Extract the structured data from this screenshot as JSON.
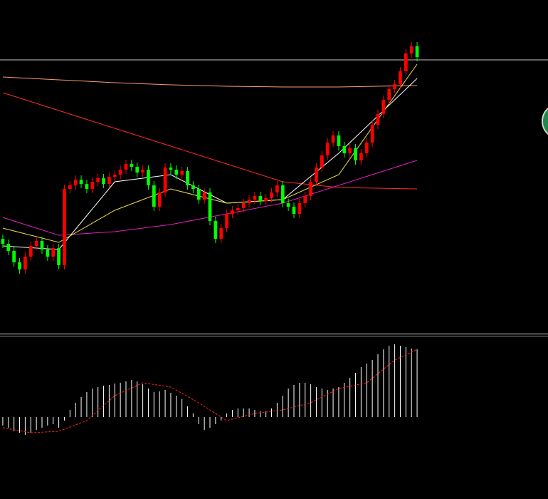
{
  "chart_data": [
    {
      "type": "candlestick",
      "xlim": [
        -0.5,
        74.5
      ],
      "ylim": [
        0,
        470
      ],
      "up_color": "#ff0000",
      "down_color": "#00ff00",
      "open": [
        135,
        128,
        118,
        102,
        92,
        110,
        125,
        132,
        120,
        110,
        122,
        98,
        205,
        210,
        218,
        212,
        205,
        215,
        220,
        212,
        222,
        225,
        232,
        240,
        236,
        228,
        232,
        210,
        180,
        200,
        235,
        232,
        225,
        230,
        210,
        205,
        190,
        200,
        160,
        135,
        150,
        170,
        175,
        178,
        185,
        190,
        195,
        188,
        192,
        200,
        210,
        185,
        180,
        170,
        185,
        195,
        215,
        235,
        252,
        270,
        280,
        265,
        255,
        262,
        245,
        255,
        270,
        295,
        310,
        330,
        345,
        352,
        370,
        395,
        405
      ],
      "high": [
        141,
        134,
        124,
        108,
        116,
        131,
        138,
        138,
        126,
        128,
        128,
        211,
        216,
        224,
        224,
        218,
        221,
        226,
        226,
        228,
        231,
        238,
        246,
        246,
        242,
        238,
        238,
        216,
        206,
        241,
        241,
        238,
        236,
        236,
        216,
        211,
        206,
        206,
        166,
        156,
        176,
        181,
        184,
        191,
        196,
        201,
        201,
        198,
        206,
        216,
        216,
        191,
        186,
        191,
        201,
        221,
        241,
        258,
        276,
        286,
        286,
        271,
        268,
        268,
        261,
        276,
        301,
        316,
        336,
        351,
        358,
        376,
        401,
        411,
        411
      ],
      "low": [
        122,
        112,
        96,
        86,
        86,
        104,
        119,
        114,
        104,
        104,
        92,
        92,
        199,
        204,
        206,
        199,
        199,
        209,
        206,
        206,
        216,
        219,
        226,
        230,
        222,
        222,
        204,
        174,
        174,
        194,
        226,
        219,
        219,
        204,
        199,
        184,
        184,
        154,
        129,
        129,
        144,
        164,
        169,
        172,
        179,
        184,
        182,
        182,
        186,
        194,
        179,
        174,
        164,
        164,
        179,
        189,
        209,
        229,
        246,
        264,
        259,
        249,
        249,
        239,
        239,
        249,
        264,
        289,
        304,
        324,
        339,
        346,
        364,
        389,
        384
      ],
      "close": [
        128,
        118,
        102,
        92,
        110,
        125,
        132,
        120,
        110,
        122,
        98,
        205,
        210,
        218,
        212,
        205,
        215,
        220,
        212,
        222,
        225,
        232,
        240,
        236,
        228,
        232,
        210,
        180,
        200,
        235,
        232,
        225,
        230,
        210,
        205,
        190,
        200,
        160,
        135,
        150,
        170,
        175,
        178,
        185,
        190,
        195,
        188,
        192,
        200,
        210,
        185,
        180,
        170,
        185,
        195,
        215,
        235,
        252,
        270,
        280,
        265,
        255,
        262,
        245,
        255,
        270,
        295,
        310,
        330,
        345,
        352,
        370,
        395,
        405,
        390
      ],
      "hline": {
        "value": 386,
        "color": "#c8c8c8"
      },
      "lines": [
        {
          "color": "#ff2a2a",
          "x": [
            0,
            10,
            20,
            30,
            40,
            50,
            60,
            74
          ],
          "values": [
            340,
            315,
            290,
            265,
            240,
            215,
            207,
            205
          ]
        },
        {
          "color": "#ff9a6a",
          "x": [
            0,
            10,
            20,
            30,
            40,
            50,
            60,
            74
          ],
          "values": [
            362,
            358,
            354,
            351,
            349,
            348,
            348,
            350
          ]
        },
        {
          "color": "#e020c0",
          "x": [
            0,
            10,
            20,
            30,
            40,
            50,
            60,
            74
          ],
          "values": [
            165,
            140,
            145,
            155,
            170,
            185,
            210,
            245
          ]
        },
        {
          "color": "#ffffff",
          "x": [
            0,
            10,
            20,
            30,
            40,
            50,
            60,
            74
          ],
          "values": [
            125,
            120,
            215,
            225,
            185,
            190,
            255,
            360
          ]
        },
        {
          "color": "#f0e040",
          "x": [
            0,
            10,
            20,
            30,
            40,
            50,
            60,
            74
          ],
          "values": [
            150,
            130,
            175,
            205,
            185,
            190,
            225,
            380
          ]
        }
      ]
    },
    {
      "type": "bar",
      "xlim": [
        -0.5,
        74.5
      ],
      "ylim": [
        -115,
        113
      ],
      "color": "#ffffff",
      "values": [
        -12,
        -15,
        -20,
        -22,
        -25,
        -22,
        -18,
        -15,
        -12,
        -10,
        -15,
        -5,
        10,
        20,
        28,
        35,
        40,
        42,
        44,
        45,
        47,
        48,
        50,
        52,
        50,
        46,
        40,
        35,
        36,
        38,
        34,
        30,
        25,
        15,
        5,
        -10,
        -18,
        -15,
        -10,
        -5,
        5,
        10,
        12,
        12,
        12,
        10,
        8,
        8,
        12,
        20,
        30,
        40,
        45,
        48,
        48,
        46,
        42,
        40,
        38,
        40,
        42,
        48,
        55,
        62,
        70,
        75,
        80,
        88,
        95,
        100,
        102,
        100,
        98,
        96,
        95
      ],
      "lines": [
        {
          "color": "#ff2020",
          "dashed": true,
          "x": [
            0,
            5,
            10,
            15,
            20,
            25,
            30,
            35,
            40,
            45,
            50,
            55,
            60,
            65,
            70,
            74
          ],
          "values": [
            -15,
            -22,
            -20,
            -5,
            30,
            48,
            42,
            20,
            -5,
            5,
            10,
            20,
            40,
            48,
            80,
            95
          ]
        }
      ]
    }
  ]
}
